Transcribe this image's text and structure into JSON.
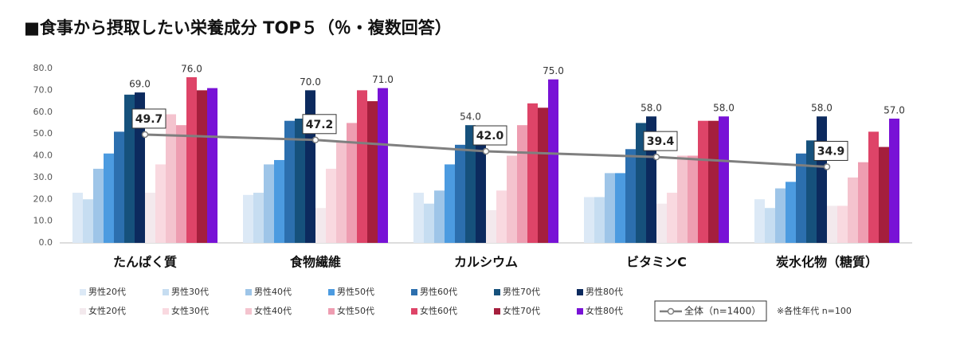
{
  "chart_data": {
    "type": "bar",
    "title": "■食事から摂取したい栄養成分 TOP５（％・複数回答）",
    "categories": [
      "たんぱく質",
      "食物繊維",
      "カルシウム",
      "ビタミンC",
      "炭水化物（糖質）"
    ],
    "ylim": [
      0,
      80
    ],
    "yticks": [
      {
        "value": 0,
        "label": "0.0"
      },
      {
        "value": 10,
        "label": "10.0"
      },
      {
        "value": 20,
        "label": "20.0"
      },
      {
        "value": 30,
        "label": "30.0"
      },
      {
        "value": 40,
        "label": "40.0"
      },
      {
        "value": 50,
        "label": "50.0"
      },
      {
        "value": 60,
        "label": "60.0"
      },
      {
        "value": 70,
        "label": "70.0"
      },
      {
        "value": 80,
        "label": "80.0"
      }
    ],
    "grid": false,
    "series": [
      {
        "name": "男性20代",
        "color": "#dce9f6",
        "values": [
          23,
          22,
          23,
          21,
          20
        ]
      },
      {
        "name": "男性30代",
        "color": "#c6ddf1",
        "values": [
          20,
          23,
          18,
          21,
          16
        ]
      },
      {
        "name": "男性40代",
        "color": "#9ec5e8",
        "values": [
          34,
          36,
          24,
          32,
          25
        ]
      },
      {
        "name": "男性50代",
        "color": "#4c9be0",
        "values": [
          41,
          38,
          36,
          32,
          28
        ]
      },
      {
        "name": "男性60代",
        "color": "#2c6fae",
        "values": [
          51,
          56,
          45,
          43,
          41
        ]
      },
      {
        "name": "男性70代",
        "color": "#16517c",
        "values": [
          68,
          57,
          54,
          55,
          47
        ],
        "value_labels": [
          null,
          null,
          "54.0",
          null,
          null
        ]
      },
      {
        "name": "男性80代",
        "color": "#0c2a5e",
        "values": [
          69,
          70,
          53,
          58,
          58
        ],
        "value_labels": [
          "69.0",
          "70.0",
          null,
          "58.0",
          "58.0"
        ]
      },
      {
        "name": "女性20代",
        "color": "#f3e9ed",
        "values": [
          23,
          16,
          15,
          18,
          17
        ]
      },
      {
        "name": "女性30代",
        "color": "#f9d9e0",
        "values": [
          36,
          34,
          24,
          23,
          17
        ]
      },
      {
        "name": "女性40代",
        "color": "#f4c3ce",
        "values": [
          59,
          46,
          40,
          40,
          30
        ]
      },
      {
        "name": "女性50代",
        "color": "#ee9db1",
        "values": [
          54,
          55,
          54,
          40,
          37
        ]
      },
      {
        "name": "女性60代",
        "color": "#de4468",
        "values": [
          76,
          70,
          64,
          56,
          51
        ],
        "value_labels": [
          "76.0",
          null,
          null,
          null,
          null
        ]
      },
      {
        "name": "女性70代",
        "color": "#a51f3d",
        "values": [
          70,
          65,
          62,
          56,
          44
        ]
      },
      {
        "name": "女性80代",
        "color": "#7812d6",
        "values": [
          71,
          71,
          75,
          58,
          57
        ],
        "value_labels": [
          null,
          "71.0",
          "75.0",
          "58.0",
          "57.0"
        ]
      }
    ],
    "overall": {
      "name": "全体（n=1400）",
      "color": "#7f7f7f",
      "values": [
        49.7,
        47.2,
        42.0,
        39.4,
        34.9
      ],
      "value_labels": [
        "49.7",
        "47.2",
        "42.0",
        "39.4",
        "34.9"
      ]
    },
    "note": "※各性年代 n=100"
  }
}
